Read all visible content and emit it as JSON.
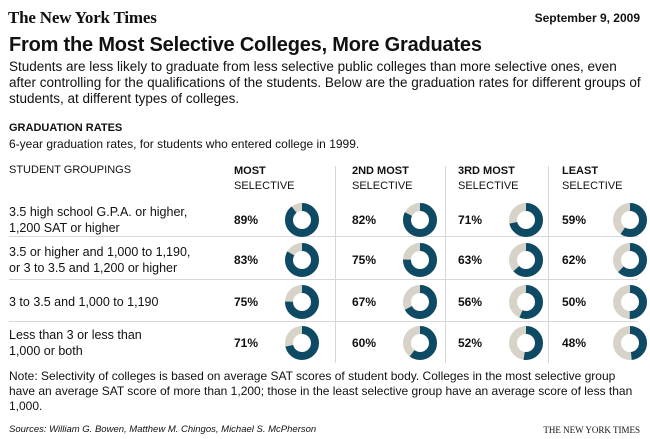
{
  "header": {
    "masthead": "The New York Times",
    "date": "September 9, 2009",
    "title": "From the Most Selective Colleges, More Graduates",
    "intro": "Students are less likely to graduate from less selective public colleges than more selective ones, even after controlling for the qualifications of the students. Below are the graduation rates for different groups of students, at different types of colleges."
  },
  "section": {
    "heading": "GRADUATION RATES",
    "subheading": "6-year graduation rates, for students who entered college in 1999.",
    "groupings_header": "STUDENT GROUPINGS"
  },
  "chart_data": {
    "type": "table",
    "columns": [
      {
        "line1": "MOST",
        "line2": "SELECTIVE"
      },
      {
        "line1": "2ND MOST",
        "line2": "SELECTIVE"
      },
      {
        "line1": "3RD MOST",
        "line2": "SELECTIVE"
      },
      {
        "line1": "LEAST",
        "line2": "SELECTIVE"
      }
    ],
    "rows": [
      {
        "label": "3.5 high school G.P.A. or higher,\n1,200 SAT or higher",
        "values": [
          89,
          82,
          71,
          59
        ],
        "labels": [
          "89%",
          "82%",
          "71%",
          "59%"
        ]
      },
      {
        "label": "3.5 or higher and 1,000 to 1,190,\nor 3 to 3.5 and 1,200 or higher",
        "values": [
          83,
          75,
          63,
          62
        ],
        "labels": [
          "83%",
          "75%",
          "63%",
          "62%"
        ]
      },
      {
        "label": "3 to 3.5 and 1,000 to 1,190",
        "values": [
          75,
          67,
          56,
          50
        ],
        "labels": [
          "75%",
          "67%",
          "56%",
          "50%"
        ]
      },
      {
        "label": "Less than 3 or less than\n1,000 or both",
        "values": [
          71,
          60,
          52,
          48
        ],
        "labels": [
          "71%",
          "60%",
          "52%",
          "48%"
        ]
      }
    ],
    "colors": {
      "filled": "#0e4a63",
      "empty": "#d8d3c8"
    }
  },
  "footer": {
    "note": "Note: Selectivity of colleges is based on average SAT scores of student body. Colleges in the most selective group have an average SAT score of more than 1,200; those in the least selective group have an average score of less than 1,000.",
    "source": "Sources: William G. Bowen, Matthew M. Chingos, Michael S. McPherson",
    "logo": "THE NEW YORK TIMES"
  }
}
